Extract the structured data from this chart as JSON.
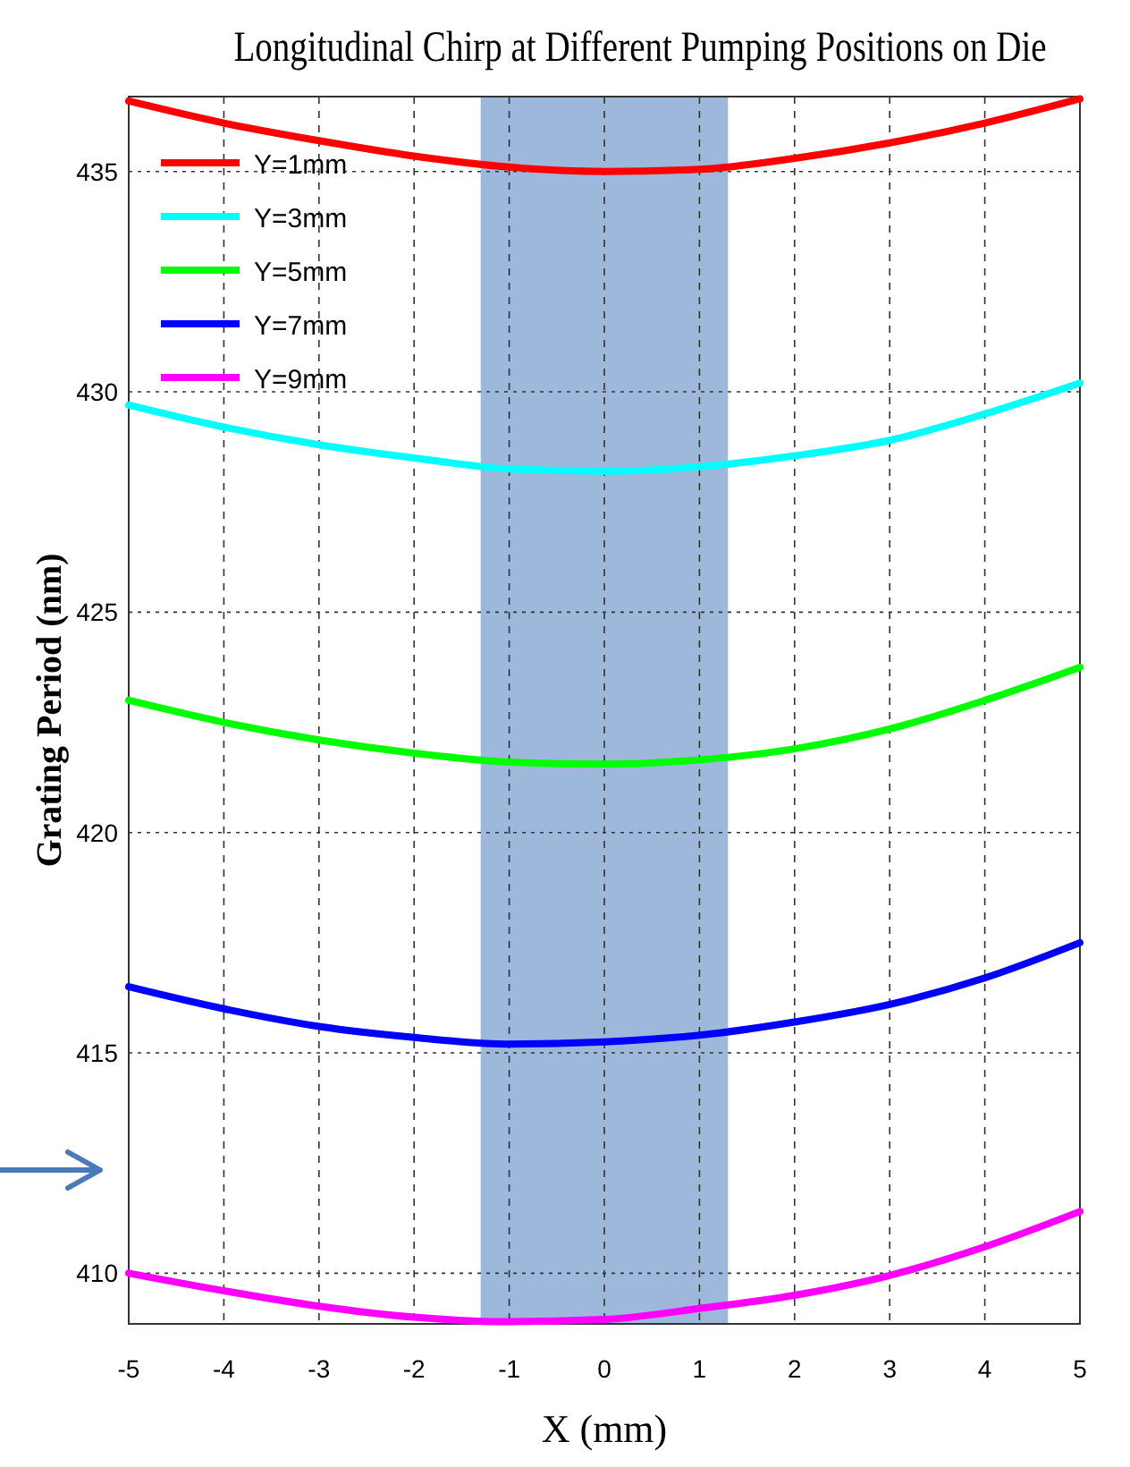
{
  "chart_data": {
    "type": "line",
    "title": "Longitudinal Chirp at Different Pumping Positions on Die",
    "xlabel": "X (mm)",
    "ylabel": "Grating Period (nm)",
    "x": [
      -5,
      -4,
      -3,
      -2,
      -1,
      0,
      1,
      2,
      3,
      4,
      5
    ],
    "series": [
      {
        "name": "Y=1mm",
        "color": "#ff0000",
        "values": [
          436.6,
          436.1,
          435.7,
          435.35,
          435.1,
          435.0,
          435.05,
          435.3,
          435.65,
          436.1,
          436.65
        ]
      },
      {
        "name": "Y=3mm",
        "color": "#00ffff",
        "values": [
          429.7,
          429.2,
          428.8,
          428.5,
          428.25,
          428.2,
          428.3,
          428.55,
          428.9,
          429.5,
          430.2
        ]
      },
      {
        "name": "Y=5mm",
        "color": "#00ff00",
        "values": [
          423.0,
          422.5,
          422.1,
          421.8,
          421.6,
          421.55,
          421.65,
          421.9,
          422.35,
          423.0,
          423.75
        ]
      },
      {
        "name": "Y=7mm",
        "color": "#0000ff",
        "values": [
          416.5,
          416.0,
          415.6,
          415.35,
          415.2,
          415.25,
          415.4,
          415.7,
          416.1,
          416.7,
          417.5
        ]
      },
      {
        "name": "Y=9mm",
        "color": "#ff00ff",
        "values": [
          410.0,
          409.6,
          409.25,
          409.0,
          408.9,
          408.95,
          409.2,
          409.5,
          409.95,
          410.6,
          411.4
        ]
      }
    ],
    "xlim": [
      -5,
      5
    ],
    "ylim": [
      408.85,
      436.7
    ],
    "xticks": [
      -5,
      -4,
      -3,
      -2,
      -1,
      0,
      1,
      2,
      3,
      4,
      5
    ],
    "yticks": [
      410,
      415,
      420,
      425,
      430,
      435
    ],
    "bands": [
      {
        "axis": "x",
        "from": -1.3,
        "to": 1.3,
        "color": "#4f7dbd"
      }
    ],
    "grid": true,
    "legend": "top left",
    "line_style": "solid"
  }
}
